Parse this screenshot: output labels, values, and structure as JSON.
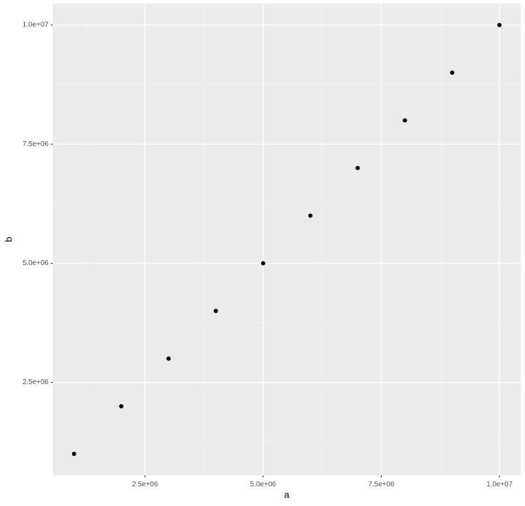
{
  "chart_data": {
    "type": "scatter",
    "x_label": "a",
    "y_label": "b",
    "x": [
      1000000,
      2000000,
      3000000,
      4000000,
      5000000,
      6000000,
      7000000,
      8000000,
      9000000,
      10000000
    ],
    "values": [
      1000000,
      2000000,
      3000000,
      4000000,
      5000000,
      6000000,
      7000000,
      8000000,
      9000000,
      10000000
    ],
    "color": "#000000",
    "xlim": [
      550000,
      10450000
    ],
    "ylim": [
      550000,
      10450000
    ],
    "xticks": [
      {
        "value": 2500000,
        "label": "2.5e+06"
      },
      {
        "value": 5000000,
        "label": "5.0e+06"
      },
      {
        "value": 7500000,
        "label": "7.5e+06"
      },
      {
        "value": 10000000,
        "label": "1.0e+07"
      }
    ],
    "yticks": [
      {
        "value": 2500000,
        "label": "2.5e+06"
      },
      {
        "value": 5000000,
        "label": "5.0e+06"
      },
      {
        "value": 7500000,
        "label": "7.5e+06"
      },
      {
        "value": 10000000,
        "label": "1.0e+07"
      }
    ],
    "xminor": [
      1250000,
      3750000,
      6250000,
      8750000
    ],
    "yminor": [
      1250000,
      3750000,
      6250000,
      8750000
    ],
    "grid": true
  }
}
